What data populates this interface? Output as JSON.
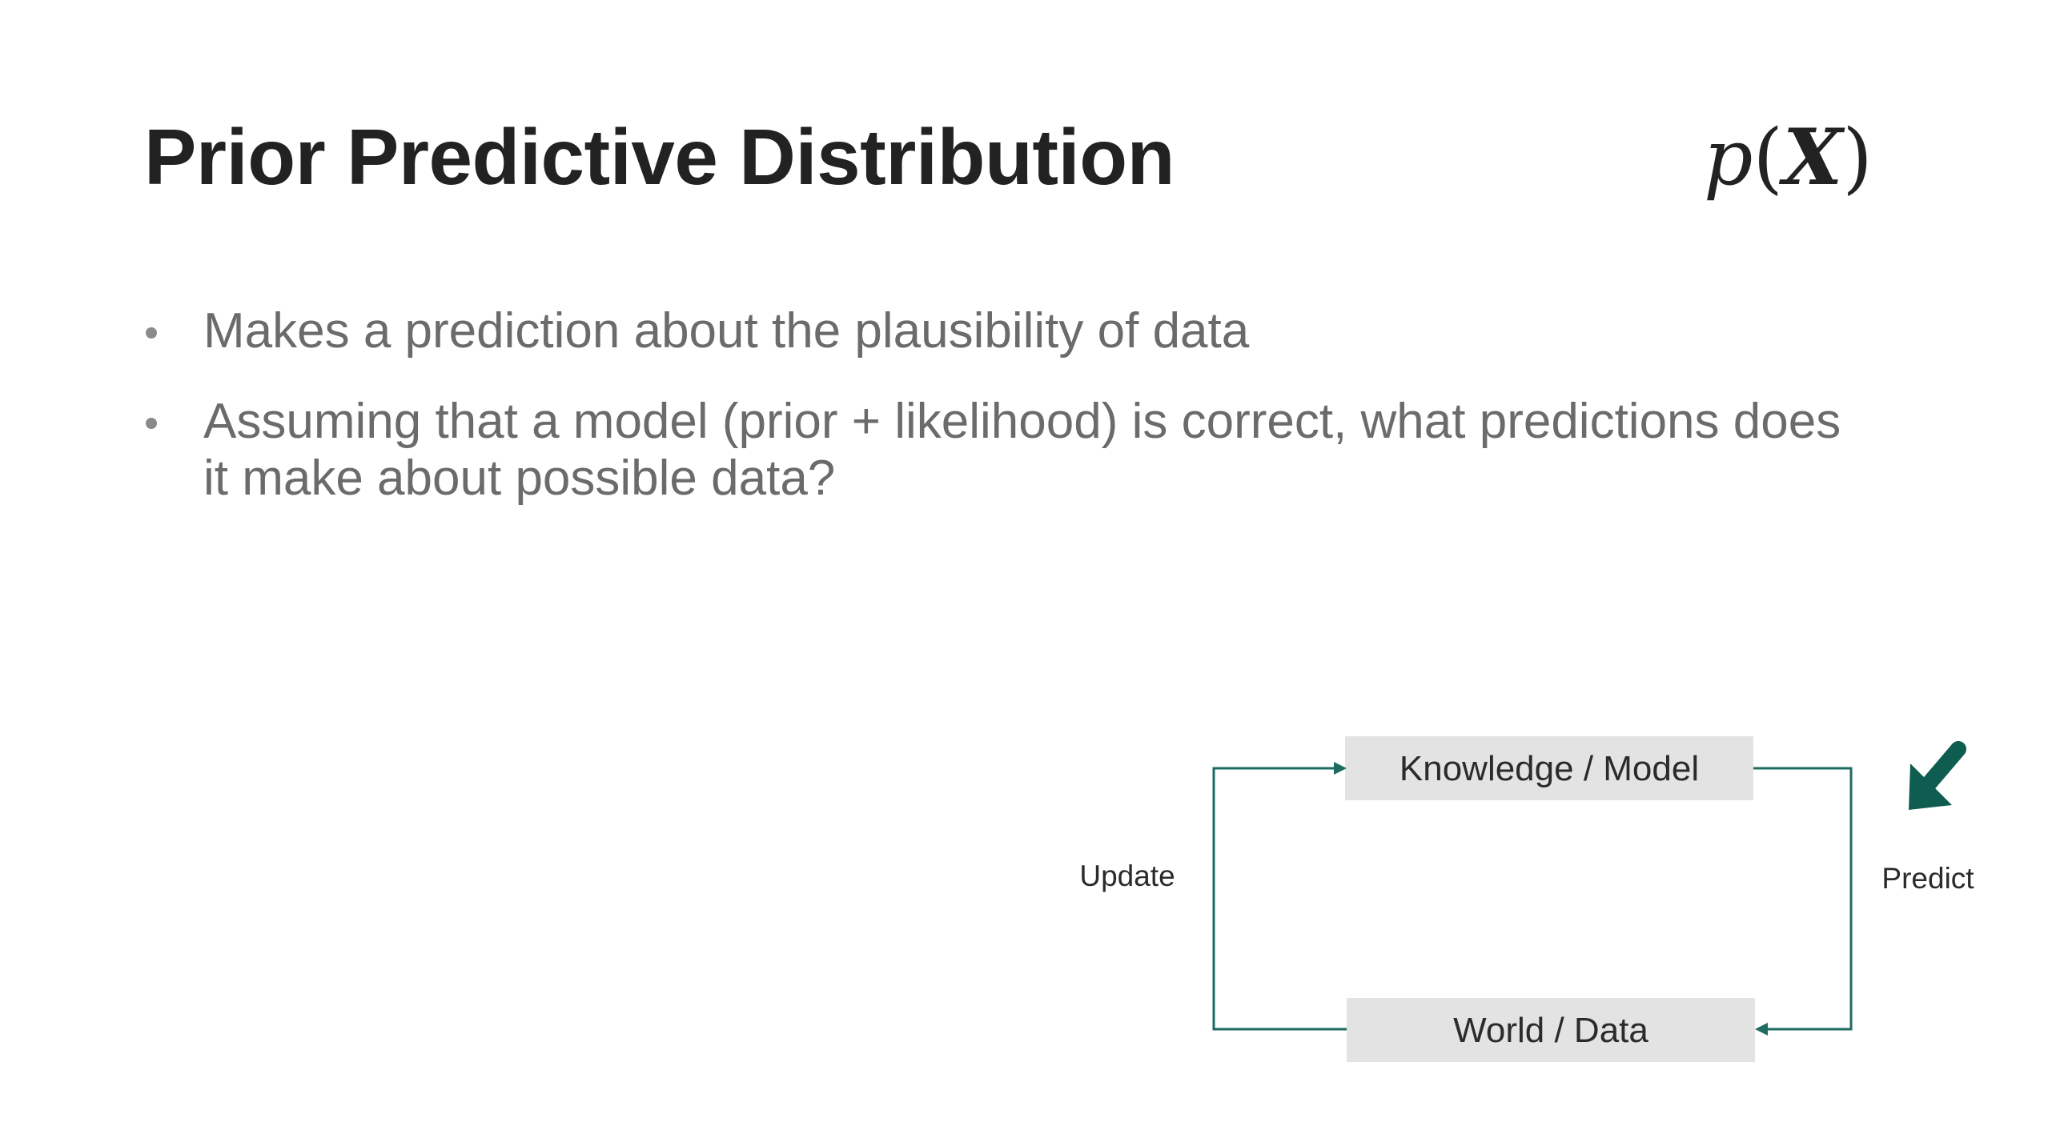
{
  "slide": {
    "title": "Prior Predictive Distribution",
    "formula": {
      "function": "p",
      "open": "(",
      "variable": "X",
      "close": ")"
    },
    "bullets": [
      "Makes a prediction about the plausibility of data",
      "Assuming that a model (prior + likelihood) is correct, what predictions does it make about possible data?"
    ]
  },
  "diagram": {
    "nodes": {
      "top": "Knowledge / Model",
      "bottom": "World / Data"
    },
    "edges": {
      "left": "Update",
      "right": "Predict"
    },
    "colors": {
      "arrow": "#1e6b62",
      "box_fill": "#e3e3e3",
      "highlight_arrow": "#0f5c50"
    }
  }
}
